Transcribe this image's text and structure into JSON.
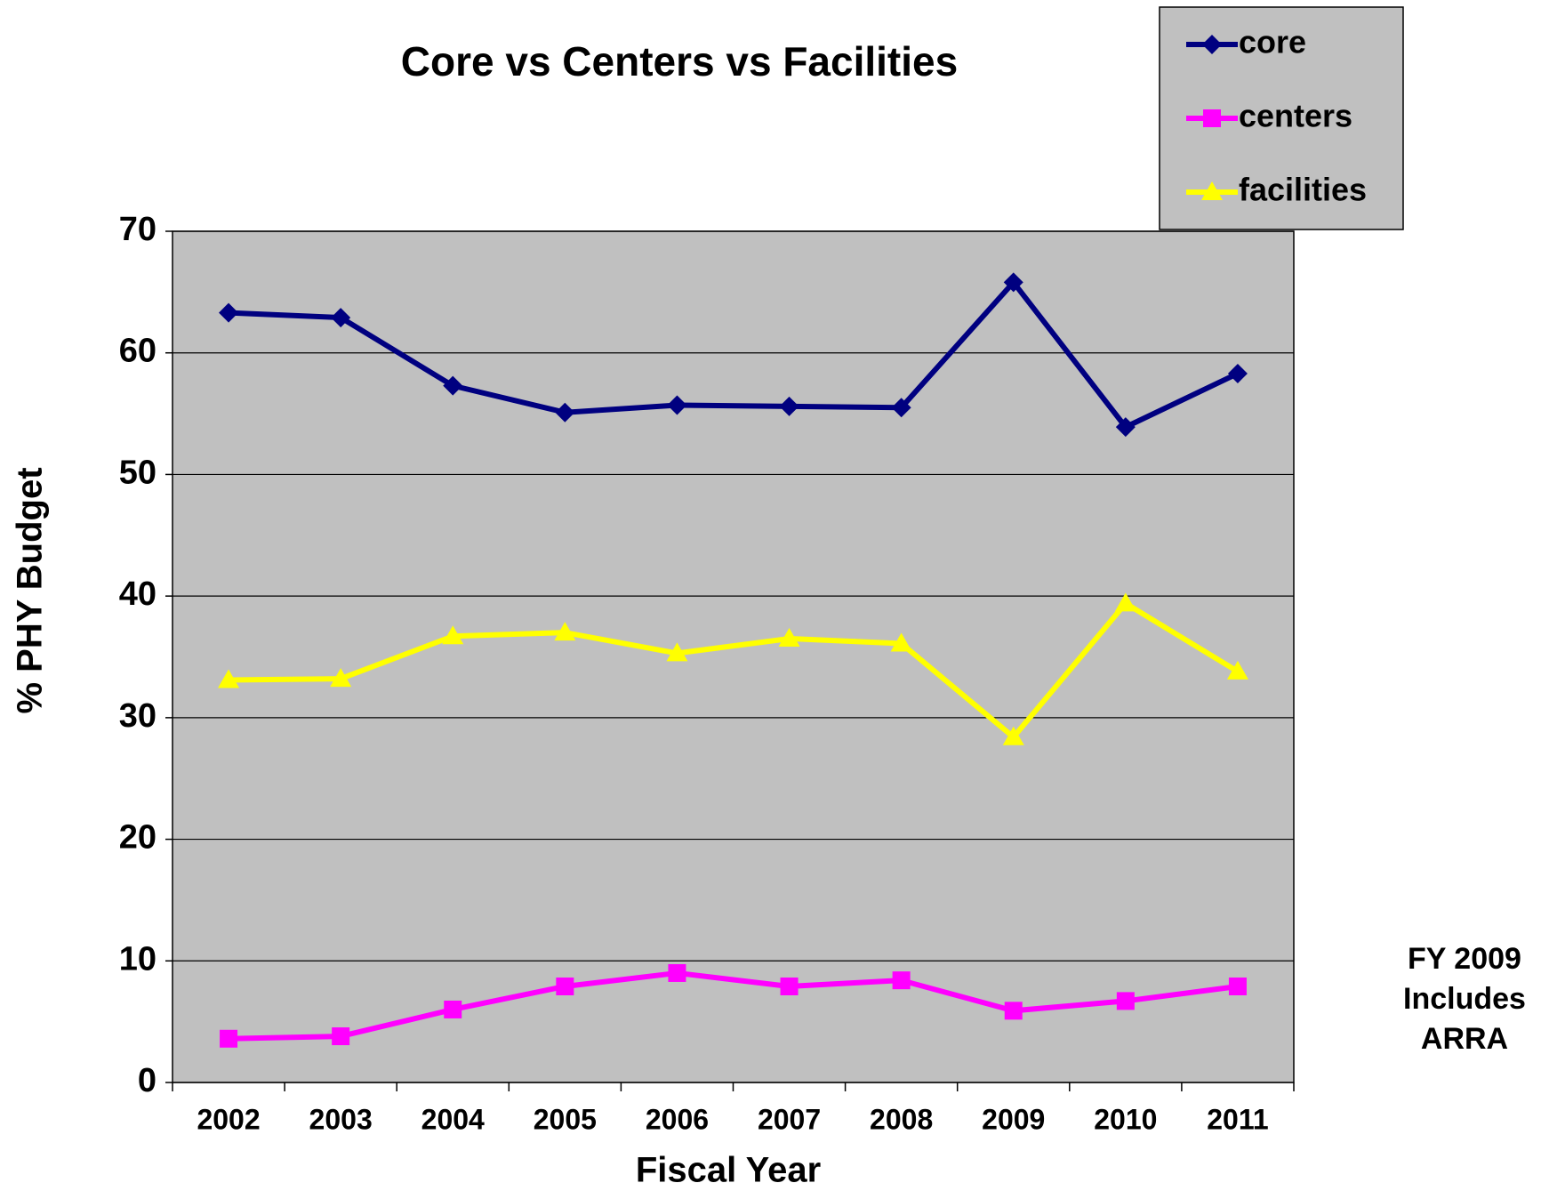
{
  "chart_data": {
    "type": "line",
    "title": "Core vs Centers vs Facilities",
    "x_label": "Fiscal Year",
    "y_label": "% PHY Budget",
    "categories": [
      "2002",
      "2003",
      "2004",
      "2005",
      "2006",
      "2007",
      "2008",
      "2009",
      "2010",
      "2011"
    ],
    "series": [
      {
        "name": "core",
        "color": "#000080",
        "marker": "diamond",
        "values": [
          63.3,
          62.9,
          57.3,
          55.1,
          55.7,
          55.6,
          55.5,
          65.8,
          53.9,
          58.3
        ]
      },
      {
        "name": "centers",
        "color": "#ff00ff",
        "marker": "square",
        "values": [
          3.6,
          3.8,
          6.0,
          7.9,
          9.0,
          7.9,
          8.4,
          5.9,
          6.7,
          7.9
        ]
      },
      {
        "name": "facilities",
        "color": "#ffff00",
        "marker": "triangle",
        "values": [
          33.1,
          33.2,
          36.7,
          37.0,
          35.3,
          36.5,
          36.1,
          28.4,
          39.4,
          33.8
        ]
      }
    ],
    "ylim": [
      0,
      70
    ],
    "yticks": [
      0,
      10,
      20,
      30,
      40,
      50,
      60,
      70
    ],
    "grid": true,
    "legend": "top-right",
    "annotation": [
      "FY 2009",
      "Includes",
      "ARRA"
    ]
  }
}
